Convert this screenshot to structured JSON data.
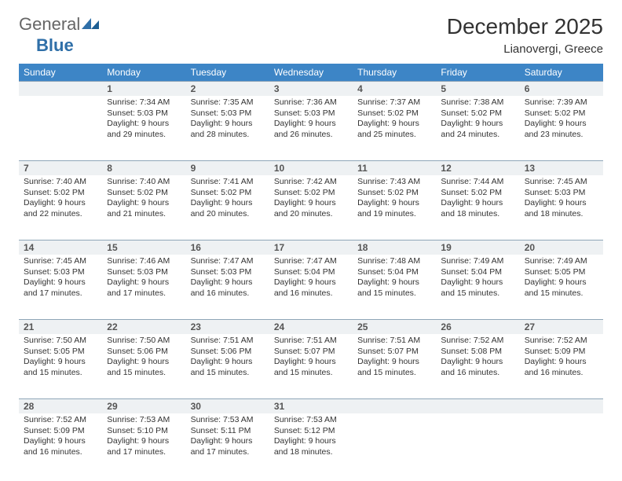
{
  "colors": {
    "header_bg": "#3d85c6",
    "header_text": "#ffffff",
    "daynum_bg": "#eef1f3",
    "daynum_border": "#8fa6b8",
    "body_text": "#333333",
    "page_bg": "#ffffff",
    "logo_blue": "#2f6fa8",
    "logo_gray": "#666666"
  },
  "logo": {
    "text_general": "General",
    "text_blue": "Blue"
  },
  "title": "December 2025",
  "location": "Lianovergi, Greece",
  "weekdays": [
    "Sunday",
    "Monday",
    "Tuesday",
    "Wednesday",
    "Thursday",
    "Friday",
    "Saturday"
  ],
  "weeks": [
    [
      {
        "num": "",
        "sunrise": "",
        "sunset": "",
        "daylight": ""
      },
      {
        "num": "1",
        "sunrise": "Sunrise: 7:34 AM",
        "sunset": "Sunset: 5:03 PM",
        "daylight": "Daylight: 9 hours and 29 minutes."
      },
      {
        "num": "2",
        "sunrise": "Sunrise: 7:35 AM",
        "sunset": "Sunset: 5:03 PM",
        "daylight": "Daylight: 9 hours and 28 minutes."
      },
      {
        "num": "3",
        "sunrise": "Sunrise: 7:36 AM",
        "sunset": "Sunset: 5:03 PM",
        "daylight": "Daylight: 9 hours and 26 minutes."
      },
      {
        "num": "4",
        "sunrise": "Sunrise: 7:37 AM",
        "sunset": "Sunset: 5:02 PM",
        "daylight": "Daylight: 9 hours and 25 minutes."
      },
      {
        "num": "5",
        "sunrise": "Sunrise: 7:38 AM",
        "sunset": "Sunset: 5:02 PM",
        "daylight": "Daylight: 9 hours and 24 minutes."
      },
      {
        "num": "6",
        "sunrise": "Sunrise: 7:39 AM",
        "sunset": "Sunset: 5:02 PM",
        "daylight": "Daylight: 9 hours and 23 minutes."
      }
    ],
    [
      {
        "num": "7",
        "sunrise": "Sunrise: 7:40 AM",
        "sunset": "Sunset: 5:02 PM",
        "daylight": "Daylight: 9 hours and 22 minutes."
      },
      {
        "num": "8",
        "sunrise": "Sunrise: 7:40 AM",
        "sunset": "Sunset: 5:02 PM",
        "daylight": "Daylight: 9 hours and 21 minutes."
      },
      {
        "num": "9",
        "sunrise": "Sunrise: 7:41 AM",
        "sunset": "Sunset: 5:02 PM",
        "daylight": "Daylight: 9 hours and 20 minutes."
      },
      {
        "num": "10",
        "sunrise": "Sunrise: 7:42 AM",
        "sunset": "Sunset: 5:02 PM",
        "daylight": "Daylight: 9 hours and 20 minutes."
      },
      {
        "num": "11",
        "sunrise": "Sunrise: 7:43 AM",
        "sunset": "Sunset: 5:02 PM",
        "daylight": "Daylight: 9 hours and 19 minutes."
      },
      {
        "num": "12",
        "sunrise": "Sunrise: 7:44 AM",
        "sunset": "Sunset: 5:02 PM",
        "daylight": "Daylight: 9 hours and 18 minutes."
      },
      {
        "num": "13",
        "sunrise": "Sunrise: 7:45 AM",
        "sunset": "Sunset: 5:03 PM",
        "daylight": "Daylight: 9 hours and 18 minutes."
      }
    ],
    [
      {
        "num": "14",
        "sunrise": "Sunrise: 7:45 AM",
        "sunset": "Sunset: 5:03 PM",
        "daylight": "Daylight: 9 hours and 17 minutes."
      },
      {
        "num": "15",
        "sunrise": "Sunrise: 7:46 AM",
        "sunset": "Sunset: 5:03 PM",
        "daylight": "Daylight: 9 hours and 17 minutes."
      },
      {
        "num": "16",
        "sunrise": "Sunrise: 7:47 AM",
        "sunset": "Sunset: 5:03 PM",
        "daylight": "Daylight: 9 hours and 16 minutes."
      },
      {
        "num": "17",
        "sunrise": "Sunrise: 7:47 AM",
        "sunset": "Sunset: 5:04 PM",
        "daylight": "Daylight: 9 hours and 16 minutes."
      },
      {
        "num": "18",
        "sunrise": "Sunrise: 7:48 AM",
        "sunset": "Sunset: 5:04 PM",
        "daylight": "Daylight: 9 hours and 15 minutes."
      },
      {
        "num": "19",
        "sunrise": "Sunrise: 7:49 AM",
        "sunset": "Sunset: 5:04 PM",
        "daylight": "Daylight: 9 hours and 15 minutes."
      },
      {
        "num": "20",
        "sunrise": "Sunrise: 7:49 AM",
        "sunset": "Sunset: 5:05 PM",
        "daylight": "Daylight: 9 hours and 15 minutes."
      }
    ],
    [
      {
        "num": "21",
        "sunrise": "Sunrise: 7:50 AM",
        "sunset": "Sunset: 5:05 PM",
        "daylight": "Daylight: 9 hours and 15 minutes."
      },
      {
        "num": "22",
        "sunrise": "Sunrise: 7:50 AM",
        "sunset": "Sunset: 5:06 PM",
        "daylight": "Daylight: 9 hours and 15 minutes."
      },
      {
        "num": "23",
        "sunrise": "Sunrise: 7:51 AM",
        "sunset": "Sunset: 5:06 PM",
        "daylight": "Daylight: 9 hours and 15 minutes."
      },
      {
        "num": "24",
        "sunrise": "Sunrise: 7:51 AM",
        "sunset": "Sunset: 5:07 PM",
        "daylight": "Daylight: 9 hours and 15 minutes."
      },
      {
        "num": "25",
        "sunrise": "Sunrise: 7:51 AM",
        "sunset": "Sunset: 5:07 PM",
        "daylight": "Daylight: 9 hours and 15 minutes."
      },
      {
        "num": "26",
        "sunrise": "Sunrise: 7:52 AM",
        "sunset": "Sunset: 5:08 PM",
        "daylight": "Daylight: 9 hours and 16 minutes."
      },
      {
        "num": "27",
        "sunrise": "Sunrise: 7:52 AM",
        "sunset": "Sunset: 5:09 PM",
        "daylight": "Daylight: 9 hours and 16 minutes."
      }
    ],
    [
      {
        "num": "28",
        "sunrise": "Sunrise: 7:52 AM",
        "sunset": "Sunset: 5:09 PM",
        "daylight": "Daylight: 9 hours and 16 minutes."
      },
      {
        "num": "29",
        "sunrise": "Sunrise: 7:53 AM",
        "sunset": "Sunset: 5:10 PM",
        "daylight": "Daylight: 9 hours and 17 minutes."
      },
      {
        "num": "30",
        "sunrise": "Sunrise: 7:53 AM",
        "sunset": "Sunset: 5:11 PM",
        "daylight": "Daylight: 9 hours and 17 minutes."
      },
      {
        "num": "31",
        "sunrise": "Sunrise: 7:53 AM",
        "sunset": "Sunset: 5:12 PM",
        "daylight": "Daylight: 9 hours and 18 minutes."
      },
      {
        "num": "",
        "sunrise": "",
        "sunset": "",
        "daylight": ""
      },
      {
        "num": "",
        "sunrise": "",
        "sunset": "",
        "daylight": ""
      },
      {
        "num": "",
        "sunrise": "",
        "sunset": "",
        "daylight": ""
      }
    ]
  ]
}
